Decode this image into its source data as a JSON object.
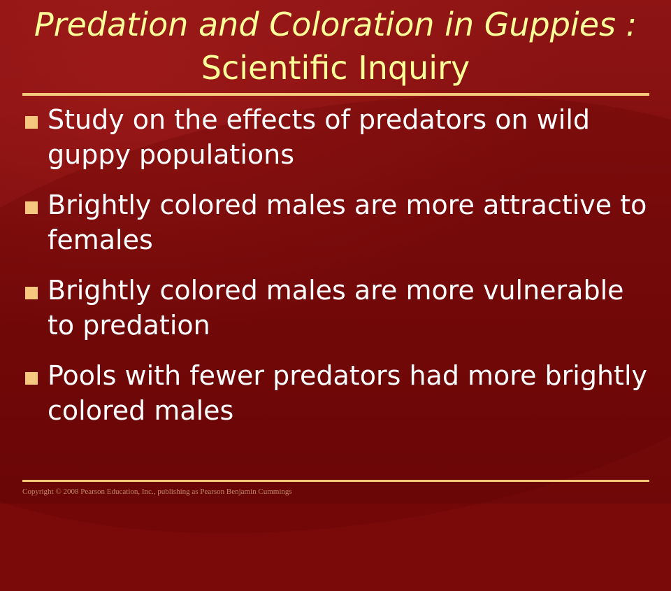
{
  "slide": {
    "title_line1": "Predation and Coloration in Guppies :",
    "title_line2": "Scientific Inquiry",
    "bullets": [
      "Study on the effects of predators on wild guppy populations",
      "Brightly colored males are more attractive to females",
      "Brightly colored males are more vulnerable to predation",
      "Pools with fewer predators had more brightly colored males"
    ],
    "copyright": "Copyright © 2008 Pearson Education, Inc., publishing as Pearson Benjamin Cummings"
  },
  "colors": {
    "background": "#7a0a0a",
    "title": "#ffff99",
    "text": "#ffffff",
    "accent": "#f4c77a"
  }
}
